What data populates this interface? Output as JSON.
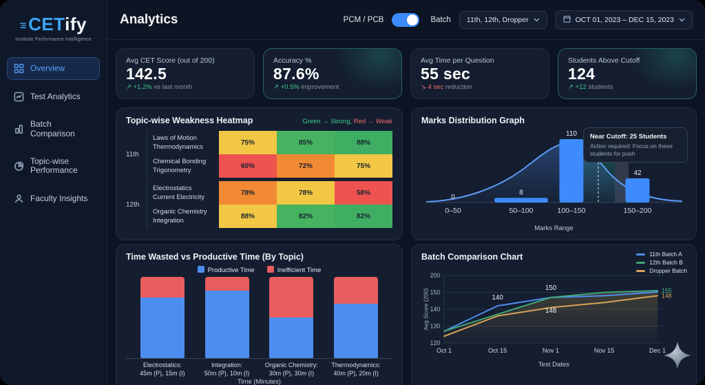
{
  "app": {
    "logo_prefix": "CET",
    "logo_suffix": "ify",
    "tagline": "Institute Performance Intelligence"
  },
  "sidebar": {
    "items": [
      {
        "label": "Overview",
        "icon": "grid-icon",
        "active": true
      },
      {
        "label": "Test Analytics",
        "icon": "chart-icon",
        "active": false
      },
      {
        "label": "Batch Comparison",
        "icon": "bars-icon",
        "active": false
      },
      {
        "label": "Topic-wise Performance",
        "icon": "pie-icon",
        "active": false
      },
      {
        "label": "Faculty Insights",
        "icon": "person-icon",
        "active": false
      }
    ]
  },
  "header": {
    "title": "Analytics",
    "toggle_label": "PCM / PCB",
    "batch_label": "Batch",
    "batch_value": "11th, 12th, Dropper",
    "date_range": "OCT 01, 2023 – DEC 15, 2023"
  },
  "kpis": [
    {
      "title": "Avg CET Score (out of 200)",
      "value": "142.5",
      "arrow": "↗",
      "delta": "+1.2%",
      "suffix": "vs last month",
      "trend": "up",
      "highlight": false
    },
    {
      "title": "Accuracy %",
      "value": "87.6%",
      "arrow": "↗",
      "delta": "+0.5%",
      "suffix": "improvement",
      "trend": "up",
      "highlight": true
    },
    {
      "title": "Avg Time per Question",
      "value": "55 sec",
      "arrow": "↘",
      "delta": "4 sec",
      "suffix": "reduction",
      "trend": "down",
      "highlight": false
    },
    {
      "title": "Students Above Cutoff",
      "value": "124",
      "arrow": "↗",
      "delta": "+12",
      "suffix": "students",
      "trend": "up",
      "highlight": true
    }
  ],
  "heatmap": {
    "title": "Topic-wise Weakness Heatmap",
    "legend_strong": "Green → Strong,",
    "legend_weak": "Red → Weak",
    "groups": [
      {
        "label": "11th",
        "rows": [
          {
            "topics": [
              "Laws of Motion",
              "Thermodynamics"
            ],
            "cells": [
              {
                "value": "75%",
                "color": "#f2c744"
              },
              {
                "value": "85%",
                "color": "#45b35f"
              },
              {
                "value": "88%",
                "color": "#3fae63"
              }
            ]
          },
          {
            "topics": [
              "Chemical Bonding",
              "Trigonometry"
            ],
            "cells": [
              {
                "value": "60%",
                "color": "#ef5350"
              },
              {
                "value": "72%",
                "color": "#f28a33"
              },
              {
                "value": "75%",
                "color": "#f2c744"
              }
            ]
          }
        ]
      },
      {
        "label": "12th",
        "rows": [
          {
            "topics": [
              "Electrostatics",
              "Current Electricity"
            ],
            "cells": [
              {
                "value": "78%",
                "color": "#f28a33"
              },
              {
                "value": "78%",
                "color": "#f2c744"
              },
              {
                "value": "58%",
                "color": "#ef5350"
              }
            ]
          },
          {
            "topics": [
              "Organic Chemistry",
              "Integration"
            ],
            "cells": [
              {
                "value": "88%",
                "color": "#f2c744"
              },
              {
                "value": "82%",
                "color": "#45b35f"
              },
              {
                "value": "82%",
                "color": "#3fae63"
              }
            ]
          }
        ]
      }
    ]
  },
  "chart_data": [
    {
      "id": "marks_distribution",
      "type": "bar",
      "title": "Marks Distribution Graph",
      "categories": [
        "0–50",
        "50–100",
        "100–150",
        "150–200"
      ],
      "values": [
        0,
        8,
        110,
        42
      ],
      "xlabel": "Marks Range",
      "ylim": [
        0,
        120
      ],
      "bar_color": "#3d8bfd",
      "curve": "bell",
      "annotation": {
        "title": "Near Cutoff: 25 Students",
        "body": "Action required: Focus on these students for push"
      }
    },
    {
      "id": "time_split",
      "type": "bar",
      "stacked": true,
      "title": "Time Wasted vs Productive Time (By Topic)",
      "categories": [
        "Electrostatics:",
        "Integration:",
        "Organic Chemistry:",
        "Thermodynamics:"
      ],
      "sublabels": [
        "45m (P), 15m (I)",
        "50m (P), 10m (I)",
        "30m (P), 30m (I)",
        "40m (P), 20m (I)"
      ],
      "series": [
        {
          "name": "Productive Time",
          "color": "#4d8df0",
          "values": [
            45,
            50,
            30,
            40
          ]
        },
        {
          "name": "Inefficient Time",
          "color": "#e85d5d",
          "values": [
            15,
            10,
            30,
            20
          ]
        }
      ],
      "xlabel": "Time (Minutes)",
      "ylim": [
        0,
        60
      ]
    },
    {
      "id": "batch_comparison",
      "type": "line",
      "title": "Batch Comparison Chart",
      "x": [
        "Oct 1",
        "Oct 15",
        "Nov 1",
        "Nov 15",
        "Dec 1"
      ],
      "series": [
        {
          "name": "11th Batch A",
          "color": "#4f8ef0",
          "values": [
            127,
            142,
            147,
            148,
            151
          ]
        },
        {
          "name": "12th Batch B",
          "color": "#3fa776",
          "values": [
            127,
            137,
            147,
            150,
            155
          ]
        },
        {
          "name": "Dropper Batch",
          "color": "#d8a35a",
          "values": [
            124,
            136,
            141,
            144,
            148
          ]
        }
      ],
      "yticks": [
        200,
        150,
        140,
        130,
        120
      ],
      "ylabel": "Avg Score (200)",
      "xlabel": "Test Dates",
      "point_labels": [
        {
          "xi": 1,
          "text": "140",
          "dy": -9
        },
        {
          "xi": 2,
          "text": "150",
          "dy": -11
        },
        {
          "xi": 2,
          "text": "148",
          "dy": 22
        }
      ],
      "end_labels": [
        {
          "text": "155",
          "color": "#4db28a",
          "value": 155
        },
        {
          "text": "148",
          "color": "#d8a35a",
          "value": 148
        }
      ]
    }
  ]
}
